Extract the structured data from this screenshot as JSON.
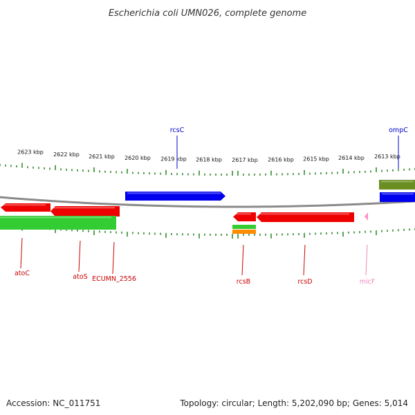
{
  "title": "Escherichia coli UMN026, complete genome",
  "footer": {
    "accession": "Accession: NC_011751",
    "summary": "Topology: circular; Length: 5,202,090 bp; Genes: 5,014"
  },
  "colors": {
    "backbone": "#8a8a8a",
    "ticks": "#2e8b2e",
    "forward_gene": "#0000ee",
    "reverse_gene": "#ee0000",
    "cds_green": "#33cc33",
    "olive": "#6b8e23",
    "orange": "#ff8c00",
    "pink": "#ff8fc0",
    "label_red": "#cc0000",
    "label_blue": "#0000cc",
    "label_pink": "#ee88bb"
  },
  "scale": {
    "unit": "kbp",
    "major_ticks": [
      {
        "label": "2623 kbp"
      },
      {
        "label": "2622 kbp"
      },
      {
        "label": "2621 kbp"
      },
      {
        "label": "2620 kbp"
      },
      {
        "label": "2619 kbp"
      },
      {
        "label": "2618 kbp"
      },
      {
        "label": "2617 kbp"
      },
      {
        "label": "2616 kbp"
      },
      {
        "label": "2615 kbp"
      },
      {
        "label": "2614 kbp"
      },
      {
        "label": "2613 kbp"
      }
    ]
  },
  "gene_labels": [
    {
      "name": "atoC",
      "color": "label_red"
    },
    {
      "name": "atoS",
      "color": "label_red"
    },
    {
      "name": "ECUMN_2556",
      "color": "label_red"
    },
    {
      "name": "rcsC",
      "color": "label_blue"
    },
    {
      "name": "rcsB",
      "color": "label_red"
    },
    {
      "name": "rcsD",
      "color": "label_red"
    },
    {
      "name": "micF",
      "color": "label_pink"
    },
    {
      "name": "ompC",
      "color": "label_blue"
    }
  ]
}
